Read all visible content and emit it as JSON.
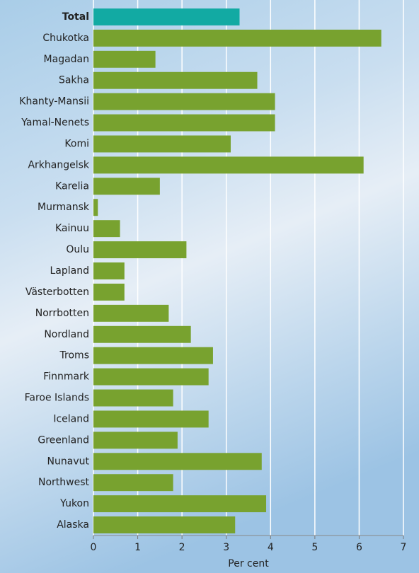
{
  "chart_data": {
    "type": "barh",
    "xlabel": "Per cent",
    "categories": [
      "Total",
      "Chukotka",
      "Magadan",
      "Sakha",
      "Khanty-Mansii",
      "Yamal-Nenets",
      "Komi",
      "Arkhangelsk",
      "Karelia",
      "Murmansk",
      "Kainuu",
      "Oulu",
      "Lapland",
      "Västerbotten",
      "Norrbotten",
      "Nordland",
      "Troms",
      "Finnmark",
      "Faroe Islands",
      "Iceland",
      "Greenland",
      "Nunavut",
      "Northwest",
      "Yukon",
      "Alaska"
    ],
    "values": [
      3.3,
      6.5,
      1.4,
      3.7,
      4.1,
      4.1,
      3.1,
      6.1,
      1.5,
      0.1,
      0.6,
      2.1,
      0.7,
      0.7,
      1.7,
      2.2,
      2.7,
      2.6,
      1.8,
      2.6,
      1.9,
      3.8,
      1.8,
      3.9,
      3.2
    ],
    "color": "#78a22f",
    "colors": [
      "#12aaa3",
      "#78a22f",
      "#78a22f",
      "#78a22f",
      "#78a22f",
      "#78a22f",
      "#78a22f",
      "#78a22f",
      "#78a22f",
      "#78a22f",
      "#78a22f",
      "#78a22f",
      "#78a22f",
      "#78a22f",
      "#78a22f",
      "#78a22f",
      "#78a22f",
      "#78a22f",
      "#78a22f",
      "#78a22f",
      "#78a22f",
      "#78a22f",
      "#78a22f",
      "#78a22f",
      "#78a22f"
    ],
    "xlim": [
      0,
      7
    ],
    "xticks": [
      0,
      1,
      2,
      3,
      4,
      5,
      6,
      7
    ],
    "grid": true
  }
}
